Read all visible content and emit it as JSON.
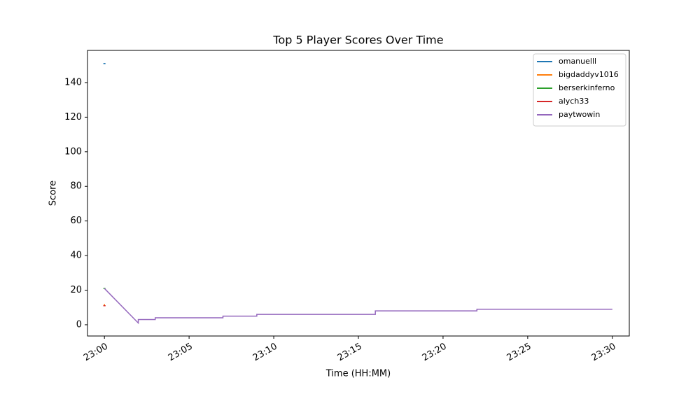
{
  "chart_data": {
    "type": "line",
    "title": "Top 5 Player Scores Over Time",
    "x_label": "Time (HH:MM)",
    "y_label": "Score",
    "xlim": [
      "22:59",
      "23:31"
    ],
    "xticks": [
      "23:00",
      "23:05",
      "23:10",
      "23:15",
      "23:20",
      "23:25",
      "23:30"
    ],
    "ylim": [
      -6.5,
      158.6
    ],
    "yticks": [
      0,
      20,
      40,
      60,
      80,
      100,
      120,
      140
    ],
    "legend": "upper right",
    "grid": false,
    "series": [
      {
        "name": "omanuelll",
        "color": "#1f77b4",
        "x": [
          "23:00"
        ],
        "values": [
          151
        ]
      },
      {
        "name": "bigdaddyv1016",
        "color": "#ff7f0e",
        "x": [
          "23:00",
          "23:00"
        ],
        "values": [
          12,
          11
        ]
      },
      {
        "name": "berserkinferno",
        "color": "#2ca02c",
        "x": [
          "23:00"
        ],
        "values": [
          21
        ]
      },
      {
        "name": "alych33",
        "color": "#d62728",
        "x": [
          "23:00"
        ],
        "values": [
          11
        ]
      },
      {
        "name": "paytwowin",
        "color": "#9467bd",
        "x": [
          "23:00",
          "23:02",
          "23:02",
          "23:03",
          "23:03",
          "23:07",
          "23:07",
          "23:09",
          "23:09",
          "23:16",
          "23:16",
          "23:16",
          "23:22",
          "23:22",
          "23:30"
        ],
        "values": [
          21,
          1,
          3,
          3,
          4,
          4,
          5,
          5,
          6,
          6,
          7,
          8,
          8,
          9,
          9
        ]
      }
    ]
  }
}
